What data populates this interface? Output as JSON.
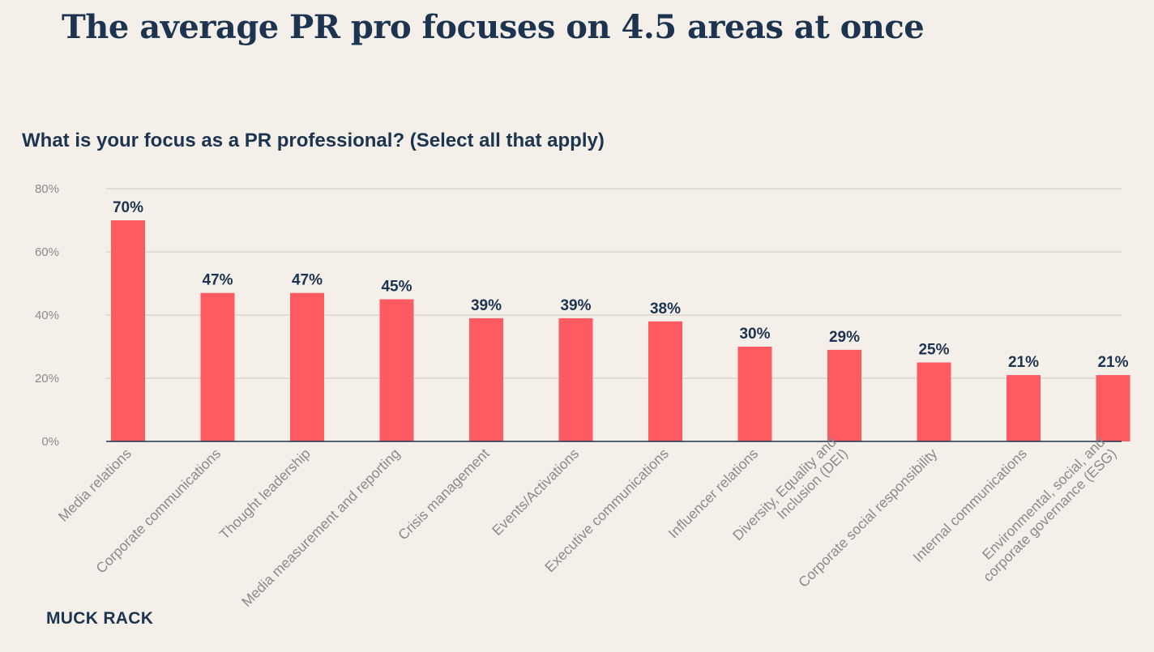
{
  "page": {
    "title": "The average PR pro focuses on 4.5 areas at once",
    "brand": "MUCK RACK"
  },
  "colors": {
    "bar": "#fe5a62",
    "text": "#1c3450",
    "tick": "#8d8a86",
    "grid": "#d3cfc8",
    "background": "#f4f0e9"
  },
  "chart_data": {
    "type": "bar",
    "title": "What is your focus as a PR professional? (Select all that apply)",
    "xlabel": "",
    "ylabel": "",
    "ylim": [
      0,
      80
    ],
    "y_ticks": [
      0,
      20,
      40,
      60,
      80
    ],
    "y_tick_labels": [
      "0%",
      "20%",
      "40%",
      "60%",
      "80%"
    ],
    "grid": true,
    "legend": "none",
    "categories": [
      [
        "Media relations"
      ],
      [
        "Corporate communications"
      ],
      [
        "Thought leadership"
      ],
      [
        "Media measurement and reporting"
      ],
      [
        "Crisis management"
      ],
      [
        "Events/Activations"
      ],
      [
        "Executive communications"
      ],
      [
        "Influencer relations"
      ],
      [
        "Diversity, Equality and",
        "Inclusion (DEI)"
      ],
      [
        "Corporate social responsibility"
      ],
      [
        "Internal communications"
      ],
      [
        "Environmental, social, and",
        "corporate governance (ESG)"
      ]
    ],
    "values": [
      70,
      47,
      47,
      45,
      39,
      39,
      38,
      30,
      29,
      25,
      21,
      21
    ],
    "value_labels": [
      "70%",
      "47%",
      "47%",
      "45%",
      "39%",
      "39%",
      "38%",
      "30%",
      "29%",
      "25%",
      "21%",
      "21%"
    ]
  }
}
